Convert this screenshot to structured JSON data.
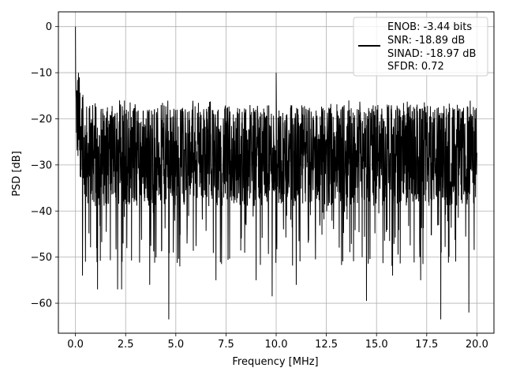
{
  "chart_data": {
    "type": "line",
    "title": "",
    "xlabel": "Frequency [MHz]",
    "ylabel": "PSD [dB]",
    "xlim": [
      -0.85,
      20.85
    ],
    "ylim": [
      -66.5,
      3.2
    ],
    "xticks": [
      0.0,
      2.5,
      5.0,
      7.5,
      10.0,
      12.5,
      15.0,
      17.5,
      20.0
    ],
    "xtick_labels": [
      "0.0",
      "2.5",
      "5.0",
      "7.5",
      "10.0",
      "12.5",
      "15.0",
      "17.5",
      "20.0"
    ],
    "yticks": [
      0,
      -10,
      -20,
      -30,
      -40,
      -50,
      -60
    ],
    "ytick_labels": [
      "0",
      "−10",
      "−20",
      "−30",
      "−40",
      "−50",
      "−60"
    ],
    "grid": true,
    "legend_position": "upper-right",
    "series_color": "#000000",
    "legend": {
      "lines": [
        "ENOB: -3.44 bits",
        "SNR: -18.89 dB",
        "SINAD: -18.97 dB",
        "SFDR: 0.72"
      ]
    },
    "series": [
      {
        "x_range": [
          0.0,
          20.0
        ],
        "points": 2048,
        "peak": {
          "x": 0.0,
          "y": 0.0
        },
        "noise_floor_band": [
          -42,
          -13
        ],
        "notable_points": [
          {
            "x": 0.02,
            "y": -12
          },
          {
            "x": 0.05,
            "y": -23
          },
          {
            "x": 0.15,
            "y": -10
          },
          {
            "x": 0.35,
            "y": -54
          },
          {
            "x": 0.5,
            "y": -51
          },
          {
            "x": 1.1,
            "y": -57
          },
          {
            "x": 2.1,
            "y": -57
          },
          {
            "x": 2.3,
            "y": -57
          },
          {
            "x": 3.7,
            "y": -56
          },
          {
            "x": 4.65,
            "y": -63.5
          },
          {
            "x": 5.2,
            "y": -52
          },
          {
            "x": 7.0,
            "y": -55
          },
          {
            "x": 9.0,
            "y": -55
          },
          {
            "x": 9.8,
            "y": -58.5
          },
          {
            "x": 10.0,
            "y": -10
          },
          {
            "x": 11.0,
            "y": -56
          },
          {
            "x": 14.5,
            "y": -59.5
          },
          {
            "x": 15.8,
            "y": -54
          },
          {
            "x": 17.2,
            "y": -55
          },
          {
            "x": 18.2,
            "y": -63.5
          },
          {
            "x": 19.6,
            "y": -62
          }
        ]
      }
    ]
  }
}
